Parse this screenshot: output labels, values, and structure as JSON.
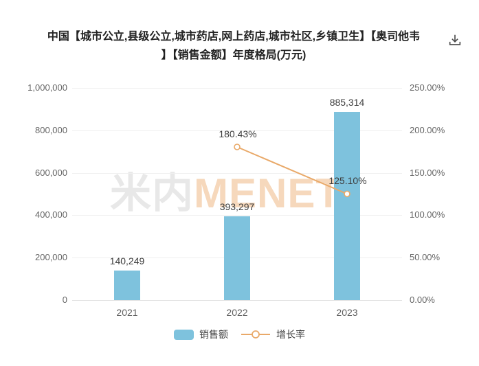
{
  "header": {
    "title_line1": "中国【城市公立,县级公立,城市药店,网上药店,城市社区,乡镇卫生】【奥司他韦",
    "title_line2": "】【销售金额】年度格局(万元)"
  },
  "watermark": {
    "text_cn": "米内",
    "text_en": "MENET"
  },
  "colors": {
    "bar": "#7EC2DD",
    "line": "#E9A969",
    "grid": "#EFEFEF",
    "axis_text": "#666666",
    "label_text": "#3C3C3C",
    "title_text": "#222222",
    "watermark_cn": "#E8E8E8",
    "watermark_en": "#F6D8BC"
  },
  "legend": {
    "items": [
      {
        "label": "销售额",
        "type": "bar"
      },
      {
        "label": "增长率",
        "type": "line"
      }
    ]
  },
  "chart_data": {
    "type": "bar",
    "title": "中国【城市公立,县级公立,城市药店,网上药店,城市社区,乡镇卫生】【奥司他韦】【销售金额】年度格局(万元)",
    "categories": [
      "2021",
      "2022",
      "2023"
    ],
    "series": [
      {
        "name": "销售额",
        "type": "bar",
        "axis": "left",
        "values": [
          140249,
          393297,
          885314
        ],
        "labels": [
          "140,249",
          "393,297",
          "885,314"
        ]
      },
      {
        "name": "增长率",
        "type": "line",
        "axis": "right",
        "values": [
          null,
          180.43,
          125.1
        ],
        "labels": [
          null,
          "180.43%",
          "125.10%"
        ]
      }
    ],
    "left_axis": {
      "range": [
        0,
        1000000
      ],
      "ticks": [
        0,
        200000,
        400000,
        600000,
        800000,
        1000000
      ],
      "tick_labels": [
        "0",
        "200,000",
        "400,000",
        "600,000",
        "800,000",
        "1,000,000"
      ]
    },
    "right_axis": {
      "range": [
        0,
        250
      ],
      "ticks": [
        0,
        50,
        100,
        150,
        200,
        250
      ],
      "tick_labels": [
        "0.00%",
        "50.00%",
        "100.00%",
        "150.00%",
        "200.00%",
        "250.00%"
      ]
    },
    "grid": true,
    "legend_position": "bottom"
  }
}
